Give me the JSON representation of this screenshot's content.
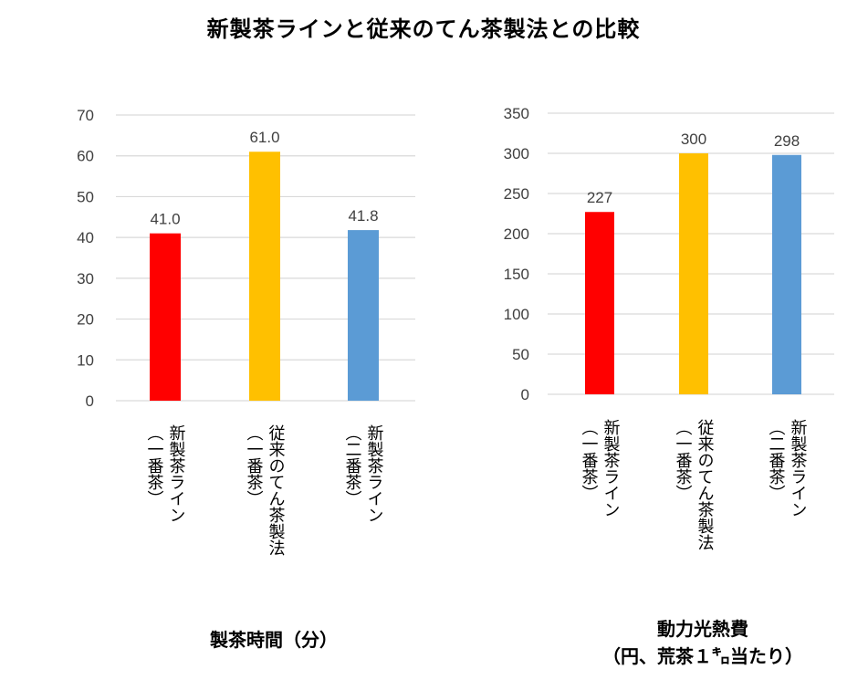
{
  "title": "新製茶ラインと従来のてん茶製法との比較",
  "colors": {
    "red": "#ff0000",
    "yellow": "#ffc000",
    "blue": "#5b9bd5",
    "grid": "#d9d9d9",
    "axis_text": "#404040"
  },
  "chart_data": [
    {
      "type": "bar",
      "title": "製茶時間（分）",
      "xlabel": "",
      "ylabel": "",
      "categories": [
        [
          "新製茶ライン",
          "（一番茶）"
        ],
        [
          "従来のてん茶製法",
          "（一番茶）"
        ],
        [
          "新製茶ライン",
          "（二番茶）"
        ]
      ],
      "values": [
        41.0,
        61.0,
        41.8
      ],
      "value_labels": [
        "41.0",
        "61.0",
        "41.8"
      ],
      "bar_colors": [
        "#ff0000",
        "#ffc000",
        "#5b9bd5"
      ],
      "ylim": [
        0,
        70
      ],
      "yticks": [
        0,
        10,
        20,
        30,
        40,
        50,
        60,
        70
      ],
      "grid": true
    },
    {
      "type": "bar",
      "title": [
        "動力光熱費",
        "（円、荒茶１㌔当たり）"
      ],
      "xlabel": "",
      "ylabel": "",
      "categories": [
        [
          "新製茶ライン",
          "（一番茶）"
        ],
        [
          "従来のてん茶製法",
          "（一番茶）"
        ],
        [
          "新製茶ライン",
          "（二番茶）"
        ]
      ],
      "values": [
        227,
        300,
        298
      ],
      "value_labels": [
        "227",
        "300",
        "298"
      ],
      "bar_colors": [
        "#ff0000",
        "#ffc000",
        "#5b9bd5"
      ],
      "ylim": [
        0,
        350
      ],
      "yticks": [
        0,
        50,
        100,
        150,
        200,
        250,
        300,
        350
      ],
      "grid": true
    }
  ]
}
